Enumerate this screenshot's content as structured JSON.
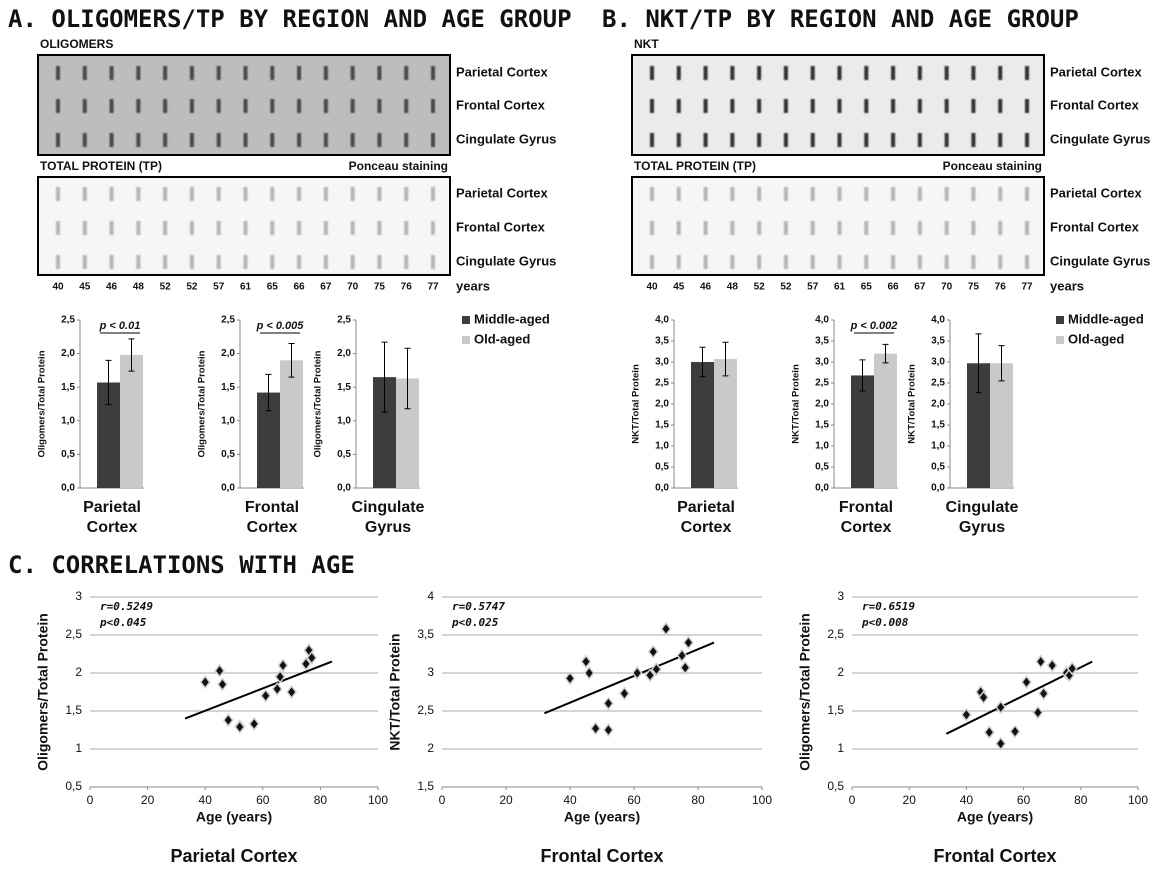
{
  "panels": [
    {
      "title": "A. OLIGOMERS/TP BY REGION AND AGE GROUP",
      "blot_top_label": "OLIGOMERS",
      "blot_bottom_label": "TOTAL PROTEIN (TP)",
      "staining": "Ponceau staining",
      "regions": [
        "Parietal Cortex",
        "Frontal Cortex",
        "Cingulate Gyrus"
      ],
      "ages": [
        40,
        45,
        46,
        48,
        52,
        52,
        57,
        61,
        65,
        66,
        67,
        70,
        75,
        76,
        77
      ],
      "age_unit": "years"
    },
    {
      "title": "B. NKT/TP BY REGION AND AGE GROUP",
      "blot_top_label": "NKT",
      "blot_bottom_label": "TOTAL PROTEIN (TP)",
      "staining": "Ponceau staining",
      "regions": [
        "Parietal Cortex",
        "Frontal Cortex",
        "Cingulate Gyrus"
      ],
      "ages": [
        40,
        45,
        46,
        48,
        52,
        52,
        57,
        61,
        65,
        66,
        67,
        70,
        75,
        76,
        77
      ],
      "age_unit": "years"
    }
  ],
  "section_c_title": "C. CORRELATIONS WITH AGE",
  "chart_data": [
    {
      "type": "bar",
      "categories": [
        "Parietal Cortex"
      ],
      "ylabel": "Oligomers/Total Protein",
      "ylim": [
        0,
        2.5
      ],
      "yticks": [
        {
          "value": 0,
          "label": "0,0"
        },
        {
          "value": 0.5,
          "label": "0,5"
        },
        {
          "value": 1,
          "label": "1,0"
        },
        {
          "value": 1.5,
          "label": "1,5"
        },
        {
          "value": 2,
          "label": "2,0"
        },
        {
          "value": 2.5,
          "label": "2,5"
        }
      ],
      "series": [
        {
          "name": "Middle-aged",
          "color": "#3d3d3d",
          "values": [
            1.57
          ],
          "errors": [
            0.33
          ]
        },
        {
          "name": "Old-aged",
          "color": "#c9c9c9",
          "values": [
            1.98
          ],
          "errors": [
            0.24
          ]
        }
      ],
      "annotation": "p < 0.01",
      "legend": false
    },
    {
      "type": "bar",
      "categories": [
        "Frontal Cortex"
      ],
      "ylabel": "Oligomers/Total Protein",
      "ylim": [
        0,
        2.5
      ],
      "yticks": [
        {
          "value": 0,
          "label": "0,0"
        },
        {
          "value": 0.5,
          "label": "0,5"
        },
        {
          "value": 1,
          "label": "1,0"
        },
        {
          "value": 1.5,
          "label": "1,5"
        },
        {
          "value": 2,
          "label": "2,0"
        },
        {
          "value": 2.5,
          "label": "2,5"
        }
      ],
      "series": [
        {
          "name": "Middle-aged",
          "color": "#3d3d3d",
          "values": [
            1.42
          ],
          "errors": [
            0.27
          ]
        },
        {
          "name": "Old-aged",
          "color": "#c9c9c9",
          "values": [
            1.9
          ],
          "errors": [
            0.25
          ]
        }
      ],
      "annotation": "p < 0.005",
      "legend": false
    },
    {
      "type": "bar",
      "categories": [
        "Cingulate Gyrus"
      ],
      "ylabel": "Oligomers/Total Protein",
      "ylim": [
        0,
        2.5
      ],
      "yticks": [
        {
          "value": 0,
          "label": "0,0"
        },
        {
          "value": 0.5,
          "label": "0,5"
        },
        {
          "value": 1,
          "label": "1,0"
        },
        {
          "value": 1.5,
          "label": "1,5"
        },
        {
          "value": 2,
          "label": "2,0"
        },
        {
          "value": 2.5,
          "label": "2,5"
        }
      ],
      "series": [
        {
          "name": "Middle-aged",
          "color": "#3d3d3d",
          "values": [
            1.65
          ],
          "errors": [
            0.52
          ]
        },
        {
          "name": "Old-aged",
          "color": "#c9c9c9",
          "values": [
            1.63
          ],
          "errors": [
            0.45
          ]
        }
      ],
      "legend": true
    },
    {
      "type": "bar",
      "categories": [
        "Parietal Cortex"
      ],
      "ylabel": "NKT/Total Protein",
      "ylim": [
        0,
        4
      ],
      "yticks": [
        {
          "value": 0,
          "label": "0,0"
        },
        {
          "value": 0.5,
          "label": "0,5"
        },
        {
          "value": 1,
          "label": "1,0"
        },
        {
          "value": 1.5,
          "label": "1,5"
        },
        {
          "value": 2,
          "label": "2,0"
        },
        {
          "value": 2.5,
          "label": "2,5"
        },
        {
          "value": 3,
          "label": "3,0"
        },
        {
          "value": 3.5,
          "label": "3,5"
        },
        {
          "value": 4,
          "label": "4,0"
        }
      ],
      "series": [
        {
          "name": "Middle-aged",
          "color": "#3d3d3d",
          "values": [
            3.0
          ],
          "errors": [
            0.35
          ]
        },
        {
          "name": "Old-aged",
          "color": "#c9c9c9",
          "values": [
            3.07
          ],
          "errors": [
            0.4
          ]
        }
      ],
      "legend": false
    },
    {
      "type": "bar",
      "categories": [
        "Frontal Cortex"
      ],
      "ylabel": "NKT/Total Protein",
      "ylim": [
        0,
        4
      ],
      "yticks": [
        {
          "value": 0,
          "label": "0,0"
        },
        {
          "value": 0.5,
          "label": "0,5"
        },
        {
          "value": 1,
          "label": "1,0"
        },
        {
          "value": 1.5,
          "label": "1,5"
        },
        {
          "value": 2,
          "label": "2,0"
        },
        {
          "value": 2.5,
          "label": "2,5"
        },
        {
          "value": 3,
          "label": "3,0"
        },
        {
          "value": 3.5,
          "label": "3,5"
        },
        {
          "value": 4,
          "label": "4,0"
        }
      ],
      "series": [
        {
          "name": "Middle-aged",
          "color": "#3d3d3d",
          "values": [
            2.68
          ],
          "errors": [
            0.37
          ]
        },
        {
          "name": "Old-aged",
          "color": "#c9c9c9",
          "values": [
            3.2
          ],
          "errors": [
            0.22
          ]
        }
      ],
      "annotation": "p < 0.002",
      "legend": false
    },
    {
      "type": "bar",
      "categories": [
        "Cingulate Gyrus"
      ],
      "ylabel": "NKT/Total Protein",
      "ylim": [
        0,
        4
      ],
      "yticks": [
        {
          "value": 0,
          "label": "0,0"
        },
        {
          "value": 0.5,
          "label": "0,5"
        },
        {
          "value": 1,
          "label": "1,0"
        },
        {
          "value": 1.5,
          "label": "1,5"
        },
        {
          "value": 2,
          "label": "2,0"
        },
        {
          "value": 2.5,
          "label": "2,5"
        },
        {
          "value": 3,
          "label": "3,0"
        },
        {
          "value": 3.5,
          "label": "3,5"
        },
        {
          "value": 4,
          "label": "4,0"
        }
      ],
      "series": [
        {
          "name": "Middle-aged",
          "color": "#3d3d3d",
          "values": [
            2.97
          ],
          "errors": [
            0.7
          ]
        },
        {
          "name": "Old-aged",
          "color": "#c9c9c9",
          "values": [
            2.97
          ],
          "errors": [
            0.42
          ]
        }
      ],
      "legend": true
    },
    {
      "type": "scatter",
      "title": "Parietal Cortex",
      "xlabel": "Age (years)",
      "ylabel": "Oligomers/Total Protein",
      "annotations": [
        "r=0.5249",
        "p<0.045"
      ],
      "xlim": [
        0,
        100
      ],
      "xticks": [
        0,
        20,
        40,
        60,
        80,
        100
      ],
      "ylim": [
        0.5,
        3
      ],
      "yticks": [
        {
          "value": 0.5,
          "label": "0,5"
        },
        1,
        {
          "value": 1.5,
          "label": "1,5"
        },
        2,
        {
          "value": 2.5,
          "label": "2,5"
        },
        3
      ],
      "grid": true,
      "color": "#111111",
      "x": [
        40,
        45,
        46,
        48,
        52,
        52,
        57,
        61,
        65,
        66,
        67,
        70,
        75,
        76,
        77
      ],
      "values": [
        1.88,
        2.03,
        1.85,
        1.38,
        1.3,
        1.29,
        1.33,
        1.7,
        1.79,
        1.95,
        2.1,
        1.75,
        2.12,
        2.3,
        2.2
      ],
      "trendline": {
        "x": [
          33,
          84
        ],
        "values": [
          1.4,
          2.15
        ]
      }
    },
    {
      "type": "scatter",
      "title": "Frontal Cortex",
      "xlabel": "Age (years)",
      "ylabel": "NKT/Total Protein",
      "annotations": [
        "r=0.5747",
        "p<0.025"
      ],
      "xlim": [
        0,
        100
      ],
      "xticks": [
        0,
        20,
        40,
        60,
        80,
        100
      ],
      "ylim": [
        1.5,
        4
      ],
      "yticks": [
        {
          "value": 1.5,
          "label": "1,5"
        },
        2,
        {
          "value": 2.5,
          "label": "2,5"
        },
        3,
        {
          "value": 3.5,
          "label": "3,5"
        },
        4
      ],
      "grid": true,
      "color": "#111111",
      "x": [
        40,
        45,
        46,
        48,
        52,
        52,
        57,
        61,
        65,
        66,
        67,
        70,
        75,
        76,
        77
      ],
      "values": [
        2.93,
        3.15,
        3.0,
        2.27,
        2.25,
        2.6,
        2.73,
        3.0,
        2.97,
        3.28,
        3.05,
        3.58,
        3.23,
        3.07,
        3.4
      ],
      "trendline": {
        "x": [
          32,
          85
        ],
        "values": [
          2.47,
          3.4
        ]
      }
    },
    {
      "type": "scatter",
      "title": "Frontal Cortex",
      "xlabel": "Age (years)",
      "ylabel": "Oligomers/Total Protein",
      "annotations": [
        "r=0.6519",
        "p<0.008"
      ],
      "xlim": [
        0,
        100
      ],
      "xticks": [
        0,
        20,
        40,
        60,
        80,
        100
      ],
      "ylim": [
        0.5,
        3
      ],
      "yticks": [
        {
          "value": 0.5,
          "label": "0,5"
        },
        1,
        {
          "value": 1.5,
          "label": "1,5"
        },
        2,
        {
          "value": 2.5,
          "label": "2,5"
        },
        3
      ],
      "grid": true,
      "color": "#111111",
      "x": [
        40,
        45,
        46,
        48,
        52,
        52,
        57,
        61,
        65,
        66,
        67,
        70,
        75,
        76,
        77
      ],
      "values": [
        1.45,
        1.75,
        1.68,
        1.22,
        1.07,
        1.55,
        1.23,
        1.88,
        1.48,
        2.15,
        1.73,
        2.1,
        2.0,
        1.97,
        2.06
      ],
      "trendline": {
        "x": [
          33,
          84
        ],
        "values": [
          1.2,
          2.15
        ]
      }
    }
  ]
}
